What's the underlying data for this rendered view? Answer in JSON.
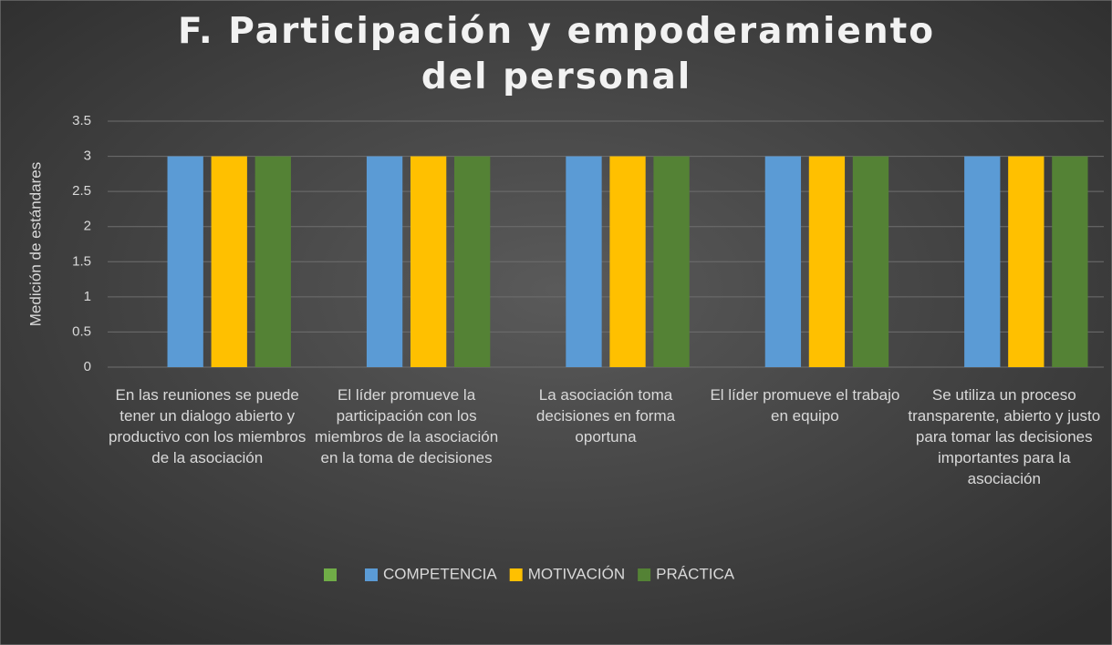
{
  "chart_data": {
    "type": "bar",
    "title": "F. Participación y empoderamiento del personal",
    "y_label": "Medición de estándares",
    "categories": [
      "En las reuniones se puede tener un dialogo abierto y productivo con los miembros de la asociación",
      "El líder promueve la participación con los miembros de la asociación  en la toma de decisiones",
      "La asociación  toma decisiones en forma oportuna",
      "El líder promueve el trabajo en equipo",
      "Se utiliza un proceso transparente, abierto y justo para tomar las decisiones importantes para la asociación"
    ],
    "series": [
      {
        "color": "#70ad47",
        "values": [
          null,
          null,
          null,
          null,
          null
        ]
      },
      {
        "name": "COMPETENCIA",
        "color": "#5b9bd5",
        "values": [
          3,
          3,
          3,
          3,
          3
        ]
      },
      {
        "name": "MOTIVACIÓN",
        "color": "#ffc000",
        "values": [
          3,
          3,
          3,
          3,
          3
        ]
      },
      {
        "name": "PRÁCTICA",
        "color": "#548235",
        "values": [
          3,
          3,
          3,
          3,
          3
        ]
      }
    ],
    "ylim": [
      0,
      3.5
    ],
    "yticks": [
      0,
      0.5,
      1,
      1.5,
      2,
      2.5,
      3,
      3.5
    ],
    "grid": true,
    "legend": "bottom"
  }
}
